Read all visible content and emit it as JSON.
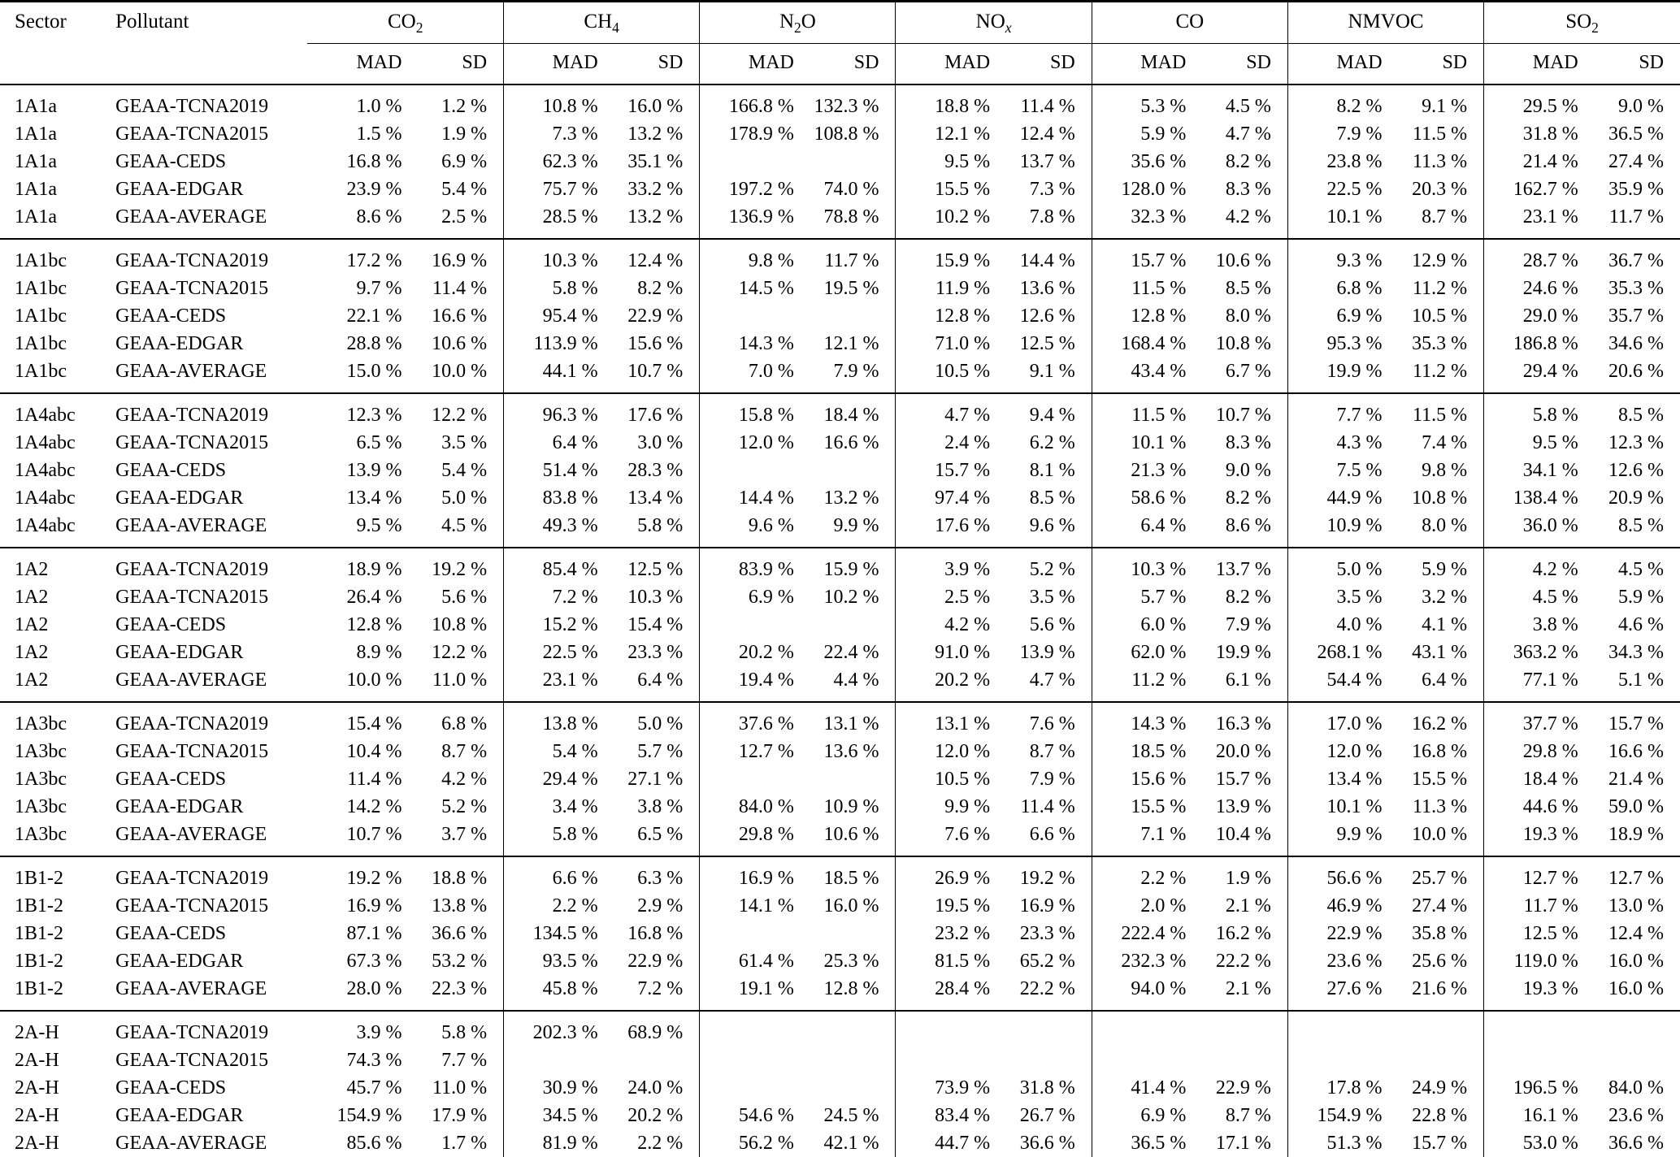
{
  "table": {
    "corner_headers": {
      "sector": "Sector",
      "pollutant": "Pollutant"
    },
    "stat_headers": {
      "mad": "MAD",
      "sd": "SD"
    },
    "pollutant_groups": [
      {
        "id": "co2",
        "parts": [
          {
            "t": "CO"
          },
          {
            "t": "2",
            "sub": true
          }
        ]
      },
      {
        "id": "ch4",
        "parts": [
          {
            "t": "CH"
          },
          {
            "t": "4",
            "sub": true
          }
        ]
      },
      {
        "id": "n2o",
        "parts": [
          {
            "t": "N"
          },
          {
            "t": "2",
            "sub": true
          },
          {
            "t": "O"
          }
        ]
      },
      {
        "id": "nox",
        "parts": [
          {
            "t": "NO"
          },
          {
            "t": "x",
            "sub": true,
            "italic": true
          }
        ]
      },
      {
        "id": "co",
        "parts": [
          {
            "t": "CO"
          }
        ]
      },
      {
        "id": "nmvoc",
        "parts": [
          {
            "t": "NMVOC"
          }
        ]
      },
      {
        "id": "so2",
        "parts": [
          {
            "t": "SO"
          },
          {
            "t": "2",
            "sub": true
          }
        ]
      }
    ],
    "groups": [
      {
        "sector": "1A1a",
        "rows": [
          {
            "pollutant": "GEAA-TCNA2019",
            "values": [
              "1.0 %",
              "1.2 %",
              "10.8 %",
              "16.0 %",
              "166.8 %",
              "132.3 %",
              "18.8 %",
              "11.4 %",
              "5.3 %",
              "4.5 %",
              "8.2 %",
              "9.1 %",
              "29.5 %",
              "9.0 %"
            ]
          },
          {
            "pollutant": "GEAA-TCNA2015",
            "values": [
              "1.5 %",
              "1.9 %",
              "7.3 %",
              "13.2 %",
              "178.9 %",
              "108.8 %",
              "12.1 %",
              "12.4 %",
              "5.9 %",
              "4.7 %",
              "7.9 %",
              "11.5 %",
              "31.8 %",
              "36.5 %"
            ]
          },
          {
            "pollutant": "GEAA-CEDS",
            "values": [
              "16.8 %",
              "6.9 %",
              "62.3 %",
              "35.1 %",
              "",
              "",
              "9.5 %",
              "13.7 %",
              "35.6 %",
              "8.2 %",
              "23.8 %",
              "11.3 %",
              "21.4 %",
              "27.4 %"
            ]
          },
          {
            "pollutant": "GEAA-EDGAR",
            "values": [
              "23.9 %",
              "5.4 %",
              "75.7 %",
              "33.2 %",
              "197.2 %",
              "74.0 %",
              "15.5 %",
              "7.3 %",
              "128.0 %",
              "8.3 %",
              "22.5 %",
              "20.3 %",
              "162.7 %",
              "35.9 %"
            ]
          },
          {
            "pollutant": "GEAA-AVERAGE",
            "values": [
              "8.6 %",
              "2.5 %",
              "28.5 %",
              "13.2 %",
              "136.9 %",
              "78.8 %",
              "10.2 %",
              "7.8 %",
              "32.3 %",
              "4.2 %",
              "10.1 %",
              "8.7 %",
              "23.1 %",
              "11.7 %"
            ]
          }
        ]
      },
      {
        "sector": "1A1bc",
        "rows": [
          {
            "pollutant": "GEAA-TCNA2019",
            "values": [
              "17.2 %",
              "16.9 %",
              "10.3 %",
              "12.4 %",
              "9.8 %",
              "11.7 %",
              "15.9 %",
              "14.4 %",
              "15.7 %",
              "10.6 %",
              "9.3 %",
              "12.9 %",
              "28.7 %",
              "36.7 %"
            ]
          },
          {
            "pollutant": "GEAA-TCNA2015",
            "values": [
              "9.7 %",
              "11.4 %",
              "5.8 %",
              "8.2 %",
              "14.5 %",
              "19.5 %",
              "11.9 %",
              "13.6 %",
              "11.5 %",
              "8.5 %",
              "6.8 %",
              "11.2 %",
              "24.6 %",
              "35.3 %"
            ]
          },
          {
            "pollutant": "GEAA-CEDS",
            "values": [
              "22.1 %",
              "16.6 %",
              "95.4 %",
              "22.9 %",
              "",
              "",
              "12.8 %",
              "12.6 %",
              "12.8 %",
              "8.0 %",
              "6.9 %",
              "10.5 %",
              "29.0 %",
              "35.7 %"
            ]
          },
          {
            "pollutant": "GEAA-EDGAR",
            "values": [
              "28.8 %",
              "10.6 %",
              "113.9 %",
              "15.6 %",
              "14.3 %",
              "12.1 %",
              "71.0 %",
              "12.5 %",
              "168.4 %",
              "10.8 %",
              "95.3 %",
              "35.3 %",
              "186.8 %",
              "34.6 %"
            ]
          },
          {
            "pollutant": "GEAA-AVERAGE",
            "values": [
              "15.0 %",
              "10.0 %",
              "44.1 %",
              "10.7 %",
              "7.0 %",
              "7.9 %",
              "10.5 %",
              "9.1 %",
              "43.4 %",
              "6.7 %",
              "19.9 %",
              "11.2 %",
              "29.4 %",
              "20.6 %"
            ]
          }
        ]
      },
      {
        "sector": "1A4abc",
        "rows": [
          {
            "pollutant": "GEAA-TCNA2019",
            "values": [
              "12.3 %",
              "12.2 %",
              "96.3 %",
              "17.6 %",
              "15.8 %",
              "18.4 %",
              "4.7 %",
              "9.4 %",
              "11.5 %",
              "10.7 %",
              "7.7 %",
              "11.5 %",
              "5.8 %",
              "8.5 %"
            ]
          },
          {
            "pollutant": "GEAA-TCNA2015",
            "values": [
              "6.5 %",
              "3.5 %",
              "6.4 %",
              "3.0 %",
              "12.0 %",
              "16.6 %",
              "2.4 %",
              "6.2 %",
              "10.1 %",
              "8.3 %",
              "4.3 %",
              "7.4 %",
              "9.5 %",
              "12.3 %"
            ]
          },
          {
            "pollutant": "GEAA-CEDS",
            "values": [
              "13.9 %",
              "5.4 %",
              "51.4 %",
              "28.3 %",
              "",
              "",
              "15.7 %",
              "8.1 %",
              "21.3 %",
              "9.0 %",
              "7.5 %",
              "9.8 %",
              "34.1 %",
              "12.6 %"
            ]
          },
          {
            "pollutant": "GEAA-EDGAR",
            "values": [
              "13.4 %",
              "5.0 %",
              "83.8 %",
              "13.4 %",
              "14.4 %",
              "13.2 %",
              "97.4 %",
              "8.5 %",
              "58.6 %",
              "8.2 %",
              "44.9 %",
              "10.8 %",
              "138.4 %",
              "20.9 %"
            ]
          },
          {
            "pollutant": "GEAA-AVERAGE",
            "values": [
              "9.5 %",
              "4.5 %",
              "49.3 %",
              "5.8 %",
              "9.6 %",
              "9.9 %",
              "17.6 %",
              "9.6 %",
              "6.4 %",
              "8.6 %",
              "10.9 %",
              "8.0 %",
              "36.0 %",
              "8.5 %"
            ]
          }
        ]
      },
      {
        "sector": "1A2",
        "rows": [
          {
            "pollutant": "GEAA-TCNA2019",
            "values": [
              "18.9 %",
              "19.2 %",
              "85.4 %",
              "12.5 %",
              "83.9 %",
              "15.9 %",
              "3.9 %",
              "5.2 %",
              "10.3 %",
              "13.7 %",
              "5.0 %",
              "5.9 %",
              "4.2 %",
              "4.5 %"
            ]
          },
          {
            "pollutant": "GEAA-TCNA2015",
            "values": [
              "26.4 %",
              "5.6 %",
              "7.2 %",
              "10.3 %",
              "6.9 %",
              "10.2 %",
              "2.5 %",
              "3.5 %",
              "5.7 %",
              "8.2 %",
              "3.5 %",
              "3.2 %",
              "4.5 %",
              "5.9 %"
            ]
          },
          {
            "pollutant": "GEAA-CEDS",
            "values": [
              "12.8 %",
              "10.8 %",
              "15.2 %",
              "15.4 %",
              "",
              "",
              "4.2 %",
              "5.6 %",
              "6.0 %",
              "7.9 %",
              "4.0 %",
              "4.1 %",
              "3.8 %",
              "4.6 %"
            ]
          },
          {
            "pollutant": "GEAA-EDGAR",
            "values": [
              "8.9 %",
              "12.2 %",
              "22.5 %",
              "23.3 %",
              "20.2 %",
              "22.4 %",
              "91.0 %",
              "13.9 %",
              "62.0 %",
              "19.9 %",
              "268.1 %",
              "43.1 %",
              "363.2 %",
              "34.3 %"
            ]
          },
          {
            "pollutant": "GEAA-AVERAGE",
            "values": [
              "10.0 %",
              "11.0 %",
              "23.1 %",
              "6.4 %",
              "19.4 %",
              "4.4 %",
              "20.2 %",
              "4.7 %",
              "11.2 %",
              "6.1 %",
              "54.4 %",
              "6.4 %",
              "77.1 %",
              "5.1 %"
            ]
          }
        ]
      },
      {
        "sector": "1A3bc",
        "rows": [
          {
            "pollutant": "GEAA-TCNA2019",
            "values": [
              "15.4 %",
              "6.8 %",
              "13.8 %",
              "5.0 %",
              "37.6 %",
              "13.1 %",
              "13.1 %",
              "7.6 %",
              "14.3 %",
              "16.3 %",
              "17.0 %",
              "16.2 %",
              "37.7 %",
              "15.7 %"
            ]
          },
          {
            "pollutant": "GEAA-TCNA2015",
            "values": [
              "10.4 %",
              "8.7 %",
              "5.4 %",
              "5.7 %",
              "12.7 %",
              "13.6 %",
              "12.0 %",
              "8.7 %",
              "18.5 %",
              "20.0 %",
              "12.0 %",
              "16.8 %",
              "29.8 %",
              "16.6 %"
            ]
          },
          {
            "pollutant": "GEAA-CEDS",
            "values": [
              "11.4 %",
              "4.2 %",
              "29.4 %",
              "27.1 %",
              "",
              "",
              "10.5 %",
              "7.9 %",
              "15.6 %",
              "15.7 %",
              "13.4 %",
              "15.5 %",
              "18.4 %",
              "21.4 %"
            ]
          },
          {
            "pollutant": "GEAA-EDGAR",
            "values": [
              "14.2 %",
              "5.2 %",
              "3.4 %",
              "3.8 %",
              "84.0 %",
              "10.9 %",
              "9.9 %",
              "11.4 %",
              "15.5 %",
              "13.9 %",
              "10.1 %",
              "11.3 %",
              "44.6 %",
              "59.0 %"
            ]
          },
          {
            "pollutant": "GEAA-AVERAGE",
            "values": [
              "10.7 %",
              "3.7 %",
              "5.8 %",
              "6.5 %",
              "29.8 %",
              "10.6 %",
              "7.6 %",
              "6.6 %",
              "7.1 %",
              "10.4 %",
              "9.9 %",
              "10.0 %",
              "19.3 %",
              "18.9 %"
            ]
          }
        ]
      },
      {
        "sector": "1B1-2",
        "rows": [
          {
            "pollutant": "GEAA-TCNA2019",
            "values": [
              "19.2 %",
              "18.8 %",
              "6.6 %",
              "6.3 %",
              "16.9 %",
              "18.5 %",
              "26.9 %",
              "19.2 %",
              "2.2 %",
              "1.9 %",
              "56.6 %",
              "25.7 %",
              "12.7 %",
              "12.7 %"
            ]
          },
          {
            "pollutant": "GEAA-TCNA2015",
            "values": [
              "16.9 %",
              "13.8 %",
              "2.2 %",
              "2.9 %",
              "14.1 %",
              "16.0 %",
              "19.5 %",
              "16.9 %",
              "2.0 %",
              "2.1 %",
              "46.9 %",
              "27.4 %",
              "11.7 %",
              "13.0 %"
            ]
          },
          {
            "pollutant": "GEAA-CEDS",
            "values": [
              "87.1 %",
              "36.6 %",
              "134.5 %",
              "16.8 %",
              "",
              "",
              "23.2 %",
              "23.3 %",
              "222.4 %",
              "16.2 %",
              "22.9 %",
              "35.8 %",
              "12.5 %",
              "12.4 %"
            ]
          },
          {
            "pollutant": "GEAA-EDGAR",
            "values": [
              "67.3 %",
              "53.2 %",
              "93.5 %",
              "22.9 %",
              "61.4 %",
              "25.3 %",
              "81.5 %",
              "65.2 %",
              "232.3 %",
              "22.2 %",
              "23.6 %",
              "25.6 %",
              "119.0 %",
              "16.0 %"
            ]
          },
          {
            "pollutant": "GEAA-AVERAGE",
            "values": [
              "28.0 %",
              "22.3 %",
              "45.8 %",
              "7.2 %",
              "19.1 %",
              "12.8 %",
              "28.4 %",
              "22.2 %",
              "94.0 %",
              "2.1 %",
              "27.6 %",
              "21.6 %",
              "19.3 %",
              "16.0 %"
            ]
          }
        ]
      },
      {
        "sector": "2A-H",
        "rows": [
          {
            "pollutant": "GEAA-TCNA2019",
            "values": [
              "3.9 %",
              "5.8 %",
              "202.3 %",
              "68.9 %",
              "",
              "",
              "",
              "",
              "",
              "",
              "",
              "",
              "",
              ""
            ]
          },
          {
            "pollutant": "GEAA-TCNA2015",
            "values": [
              "74.3 %",
              "7.7 %",
              "",
              "",
              "",
              "",
              "",
              "",
              "",
              "",
              "",
              "",
              "",
              ""
            ]
          },
          {
            "pollutant": "GEAA-CEDS",
            "values": [
              "45.7 %",
              "11.0 %",
              "30.9 %",
              "24.0 %",
              "",
              "",
              "73.9 %",
              "31.8 %",
              "41.4 %",
              "22.9 %",
              "17.8 %",
              "24.9 %",
              "196.5 %",
              "84.0 %"
            ]
          },
          {
            "pollutant": "GEAA-EDGAR",
            "values": [
              "154.9 %",
              "17.9 %",
              "34.5 %",
              "20.2 %",
              "54.6 %",
              "24.5 %",
              "83.4 %",
              "26.7 %",
              "6.9 %",
              "8.7 %",
              "154.9 %",
              "22.8 %",
              "16.1 %",
              "23.6 %"
            ]
          },
          {
            "pollutant": "GEAA-AVERAGE",
            "values": [
              "85.6 %",
              "1.7 %",
              "81.9 %",
              "2.2 %",
              "56.2 %",
              "42.1 %",
              "44.7 %",
              "36.6 %",
              "36.5 %",
              "17.1 %",
              "51.3 %",
              "15.7 %",
              "53.0 %",
              "36.6 %"
            ]
          }
        ]
      }
    ]
  }
}
